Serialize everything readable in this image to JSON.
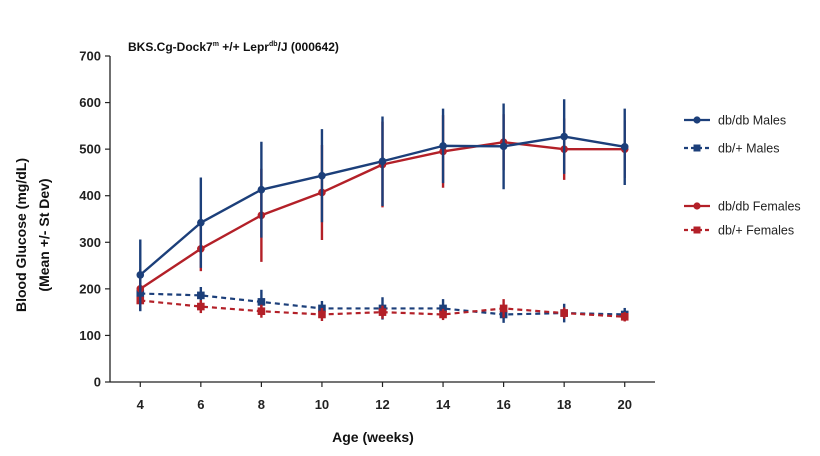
{
  "chart_data": {
    "type": "line",
    "title_main": "BKS.Cg-Dock7",
    "title_sup1": "m",
    "title_mid": " +/+ Lepr",
    "title_sup2": "db",
    "title_end": "/J (000642)",
    "xlabel": "Age (weeks)",
    "ylabel_line1": "Blood Glucose (mg/dL)",
    "ylabel_line2": "(Mean +/- St Dev)",
    "x": [
      4,
      6,
      8,
      10,
      12,
      14,
      16,
      18,
      20
    ],
    "xlim": [
      3,
      21
    ],
    "ylim": [
      0,
      700
    ],
    "yticks": [
      0,
      100,
      200,
      300,
      400,
      500,
      600,
      700
    ],
    "grid": false,
    "legend_position": "right",
    "series": [
      {
        "name": "db/db Males",
        "color": "#1c3f7a",
        "style": "solid",
        "marker": "circle",
        "values": [
          230,
          342,
          413,
          443,
          474,
          507,
          506,
          527,
          505
        ],
        "sd": [
          76,
          97,
          103,
          100,
          96,
          80,
          92,
          80,
          82
        ]
      },
      {
        "name": "db/+ Males",
        "color": "#1c3f7a",
        "style": "dashed",
        "marker": "square",
        "values": [
          190,
          186,
          172,
          158,
          158,
          158,
          145,
          148,
          145
        ],
        "sd": [
          38,
          18,
          26,
          16,
          24,
          20,
          18,
          20,
          14
        ]
      },
      {
        "name": "db/db Females",
        "color": "#b32028",
        "style": "solid",
        "marker": "circle",
        "values": [
          200,
          286,
          358,
          407,
          467,
          495,
          515,
          500,
          500
        ],
        "sd": [
          42,
          48,
          100,
          102,
          92,
          78,
          60,
          66,
          62
        ]
      },
      {
        "name": "db/+ Females",
        "color": "#b32028",
        "style": "dashed",
        "marker": "square",
        "values": [
          175,
          162,
          152,
          145,
          150,
          145,
          158,
          148,
          140
        ],
        "sd": [
          12,
          14,
          14,
          14,
          14,
          12,
          20,
          12,
          10
        ]
      }
    ]
  }
}
